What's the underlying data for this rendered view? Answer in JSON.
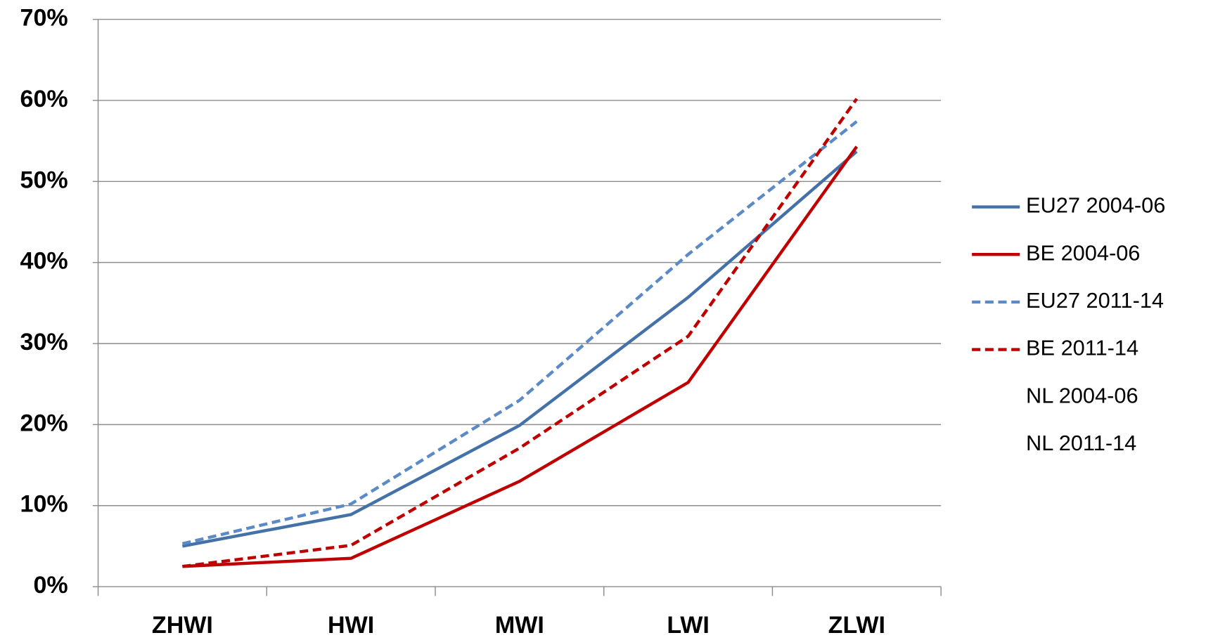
{
  "chart_data": {
    "type": "line",
    "categories": [
      "ZHWI",
      "HWI",
      "MWI",
      "LWI",
      "ZLWI"
    ],
    "series": [
      {
        "name": "EU27 2004-06",
        "color": "#4472a8",
        "dashed": false,
        "values": [
          5.0,
          8.9,
          19.9,
          35.7,
          53.7
        ]
      },
      {
        "name": "BE 2004-06",
        "color": "#c00000",
        "dashed": false,
        "values": [
          2.5,
          3.5,
          13.0,
          25.2,
          54.3
        ]
      },
      {
        "name": "EU27 2011-14",
        "color": "#5b8ac6",
        "dashed": true,
        "values": [
          5.3,
          10.2,
          23.0,
          41.0,
          57.4
        ]
      },
      {
        "name": "BE 2011-14",
        "color": "#c00000",
        "dashed": true,
        "values": [
          2.5,
          5.1,
          17.1,
          30.9,
          60.2
        ]
      },
      {
        "name": "NL 2004-06",
        "values": [
          null,
          null,
          null,
          null,
          null
        ]
      },
      {
        "name": "NL 2011-14",
        "values": [
          null,
          null,
          null,
          null,
          null
        ]
      }
    ],
    "ylim": [
      0,
      70
    ],
    "yticks": [
      {
        "value": 0,
        "label": "0%"
      },
      {
        "value": 10,
        "label": "10%"
      },
      {
        "value": 20,
        "label": "20%"
      },
      {
        "value": 30,
        "label": "30%"
      },
      {
        "value": 40,
        "label": "40%"
      },
      {
        "value": 50,
        "label": "50%"
      },
      {
        "value": 60,
        "label": "60%"
      },
      {
        "value": 70,
        "label": "70%"
      }
    ],
    "grid": true,
    "legend": "right"
  }
}
